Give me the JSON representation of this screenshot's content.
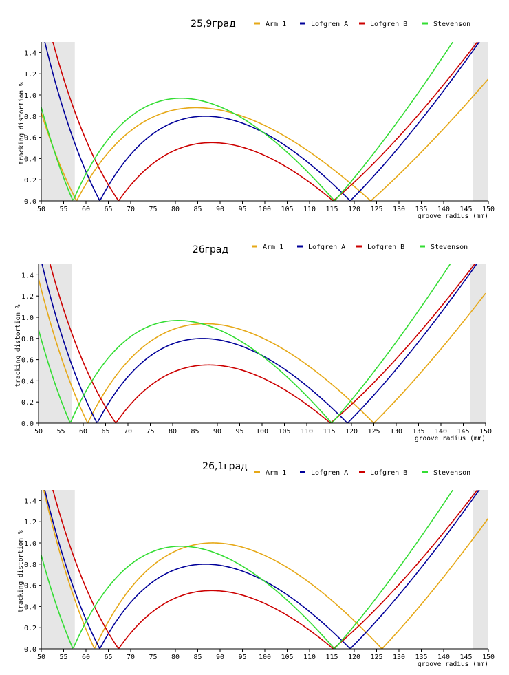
{
  "chart_data": [
    {
      "type": "line",
      "title": "25,9град",
      "xlabel": "groove radius (mm)",
      "ylabel": "tracking distortion %",
      "xlim": [
        50,
        150
      ],
      "ylim": [
        0,
        1.5
      ],
      "x_ticks": [
        "50",
        "55",
        "60",
        "65",
        "70",
        "75",
        "80",
        "85",
        "90",
        "95",
        "100",
        "105",
        "110",
        "115",
        "120",
        "125",
        "130",
        "135",
        "140",
        "145",
        "150"
      ],
      "y_ticks": [
        "0.0",
        "0.2",
        "0.4",
        "0.6",
        "0.8",
        "1.0",
        "1.2",
        "1.4"
      ],
      "shaded_regions": [
        [
          50,
          57.5
        ],
        [
          146.5,
          150
        ]
      ],
      "legend_position": "top",
      "series": [
        {
          "name": "Arm 1",
          "color": "#e6a817",
          "null_points": [
            57.9,
            123.7
          ],
          "peak": 0.85
        },
        {
          "name": "Lofgren A",
          "color": "#000099",
          "null_points": [
            63.1,
            119.1
          ],
          "peak": 0.78
        },
        {
          "name": "Lofgren B",
          "color": "#cc0000",
          "null_points": [
            67.3,
            115.3
          ],
          "peak": 0.54
        },
        {
          "name": "Stevenson",
          "color": "#33dd33",
          "null_points": [
            57.1,
            115.6
          ],
          "peak": 0.94
        }
      ]
    },
    {
      "type": "line",
      "title": "26град",
      "xlabel": "groove radius (mm)",
      "ylabel": "tracking distortion %",
      "xlim": [
        50,
        150
      ],
      "ylim": [
        0,
        1.5
      ],
      "x_ticks": [
        "50",
        "55",
        "60",
        "65",
        "70",
        "75",
        "80",
        "85",
        "90",
        "95",
        "100",
        "105",
        "110",
        "115",
        "120",
        "125",
        "130",
        "135",
        "140",
        "145",
        "150"
      ],
      "y_ticks": [
        "0.0",
        "0.2",
        "0.4",
        "0.6",
        "0.8",
        "1.0",
        "1.2",
        "1.4"
      ],
      "shaded_regions": [
        [
          50,
          57.5
        ],
        [
          146.5,
          150
        ]
      ],
      "legend_position": "top",
      "series": [
        {
          "name": "Arm 1",
          "color": "#e6a817",
          "null_points": [
            61.0,
            125.0
          ],
          "peak": 0.91
        },
        {
          "name": "Lofgren A",
          "color": "#000099",
          "null_points": [
            63.1,
            119.1
          ],
          "peak": 0.78
        },
        {
          "name": "Lofgren B",
          "color": "#cc0000",
          "null_points": [
            67.3,
            115.3
          ],
          "peak": 0.54
        },
        {
          "name": "Stevenson",
          "color": "#33dd33",
          "null_points": [
            57.1,
            115.6
          ],
          "peak": 0.94
        }
      ]
    },
    {
      "type": "line",
      "title": "26,1град",
      "xlabel": "groove radius (mm)",
      "ylabel": "tracking distortion %",
      "xlim": [
        50,
        150
      ],
      "ylim": [
        0,
        1.5
      ],
      "x_ticks": [
        "50",
        "55",
        "60",
        "65",
        "70",
        "75",
        "80",
        "85",
        "90",
        "95",
        "100",
        "105",
        "110",
        "115",
        "120",
        "125",
        "130",
        "135",
        "140",
        "145",
        "150"
      ],
      "y_ticks": [
        "0.0",
        "0.2",
        "0.4",
        "0.6",
        "0.8",
        "1.0",
        "1.2",
        "1.4"
      ],
      "shaded_regions": [
        [
          50,
          57.5
        ],
        [
          146.5,
          150
        ]
      ],
      "legend_position": "top",
      "series": [
        {
          "name": "Arm 1",
          "color": "#e6a817",
          "null_points": [
            61.9,
            126.2
          ],
          "peak": 0.97
        },
        {
          "name": "Lofgren A",
          "color": "#000099",
          "null_points": [
            63.1,
            119.1
          ],
          "peak": 0.78
        },
        {
          "name": "Lofgren B",
          "color": "#cc0000",
          "null_points": [
            67.3,
            115.3
          ],
          "peak": 0.54
        },
        {
          "name": "Stevenson",
          "color": "#33dd33",
          "null_points": [
            57.1,
            115.6
          ],
          "peak": 0.94
        }
      ]
    }
  ]
}
